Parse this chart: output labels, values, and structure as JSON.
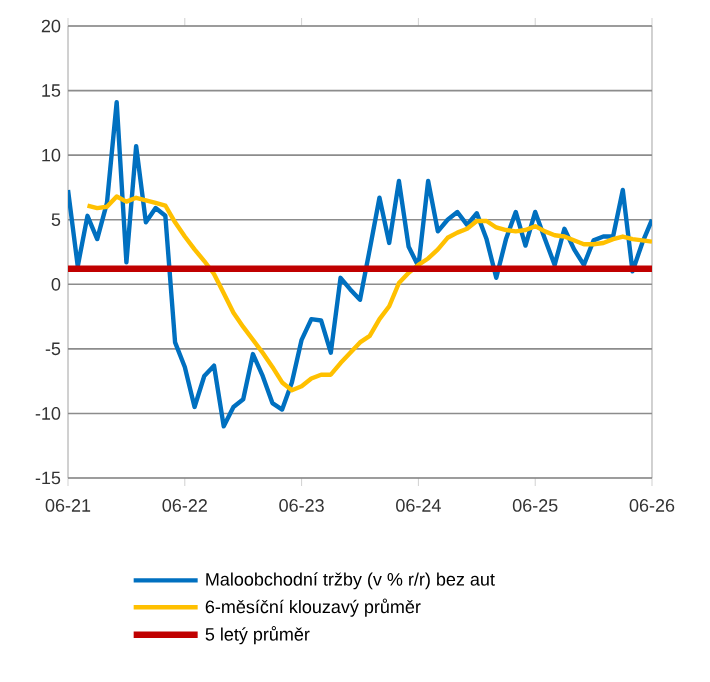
{
  "chart_data": {
    "type": "line",
    "x": [
      "2021-06",
      "2021-07",
      "2021-08",
      "2021-09",
      "2021-10",
      "2021-11",
      "2021-12",
      "2022-01",
      "2022-02",
      "2022-03",
      "2022-04",
      "2022-05",
      "2022-06",
      "2022-07",
      "2022-08",
      "2022-09",
      "2022-10",
      "2022-11",
      "2022-12",
      "2023-01",
      "2023-02",
      "2023-03",
      "2023-04",
      "2023-05",
      "2023-06",
      "2023-07",
      "2023-08",
      "2023-09",
      "2023-10",
      "2023-11",
      "2023-12",
      "2024-01",
      "2024-02",
      "2024-03",
      "2024-04",
      "2024-05",
      "2024-06",
      "2024-07",
      "2024-08",
      "2024-09",
      "2024-10",
      "2024-11",
      "2024-12",
      "2025-01",
      "2025-02",
      "2025-03",
      "2025-04",
      "2025-05",
      "2025-06",
      "2025-07",
      "2025-08",
      "2025-09",
      "2025-10",
      "2025-11",
      "2025-12",
      "2026-01",
      "2026-02",
      "2026-03",
      "2026-04",
      "2026-05",
      "2026-06"
    ],
    "series": [
      {
        "name": "Maloobchodní tržby (v % r/r) bez aut",
        "color": "#0070c0",
        "values": [
          7.3,
          1.4,
          5.3,
          3.5,
          6.3,
          14.1,
          1.7,
          10.7,
          4.8,
          5.9,
          5.3,
          -4.5,
          -6.4,
          -9.5,
          -7.1,
          -6.3,
          -11.0,
          -9.5,
          -8.9,
          -5.4,
          -7.1,
          -9.2,
          -9.7,
          -7.6,
          -4.3,
          -2.7,
          -2.8,
          -5.3,
          0.5,
          -0.4,
          -1.2,
          2.7,
          6.7,
          3.2,
          8.0,
          2.9,
          1.4,
          8.0,
          4.1,
          5.0,
          5.6,
          4.6,
          5.5,
          3.5,
          0.5,
          3.5,
          5.6,
          3.0,
          5.6,
          3.5,
          1.5,
          4.3,
          2.7,
          1.5,
          3.4,
          3.7,
          3.7,
          7.3,
          1.0,
          3.2,
          5.0
        ]
      },
      {
        "name": "6-měsíční klouzavý průměr",
        "color": "#ffc000",
        "values": [
          null,
          null,
          6.1,
          5.9,
          6.0,
          6.8,
          6.4,
          6.7,
          6.5,
          6.3,
          6.1,
          4.8,
          3.7,
          2.7,
          1.8,
          0.8,
          -0.7,
          -2.2,
          -3.3,
          -4.3,
          -5.3,
          -6.4,
          -7.6,
          -8.2,
          -7.9,
          -7.3,
          -7.0,
          -7.0,
          -6.1,
          -5.3,
          -4.5,
          -4.0,
          -2.7,
          -1.7,
          0.1,
          0.9,
          1.5,
          2.0,
          2.7,
          3.6,
          4.0,
          4.3,
          4.9,
          4.9,
          4.4,
          4.2,
          4.1,
          4.2,
          4.5,
          4.1,
          3.8,
          3.7,
          3.4,
          3.1,
          3.1,
          3.2,
          3.5,
          3.7,
          3.5,
          3.4,
          3.3
        ]
      },
      {
        "name": "5 letý průměr",
        "color": "#c00000",
        "x": [
          "2021-06",
          "2026-06"
        ],
        "values": [
          1.2,
          1.2
        ]
      }
    ],
    "xlim": [
      "2021-06",
      "2026-06"
    ],
    "xticks": [
      {
        "value": "2021-06",
        "label": "06-21"
      },
      {
        "value": "2022-06",
        "label": "06-22"
      },
      {
        "value": "2023-06",
        "label": "06-23"
      },
      {
        "value": "2024-06",
        "label": "06-24"
      },
      {
        "value": "2025-06",
        "label": "06-25"
      },
      {
        "value": "2026-06",
        "label": "06-26"
      }
    ],
    "ylim": [
      -15,
      20
    ],
    "yticks": [
      -15,
      -10,
      -5,
      0,
      5,
      10,
      15,
      20
    ],
    "grid": "y",
    "legend": "bottom"
  }
}
